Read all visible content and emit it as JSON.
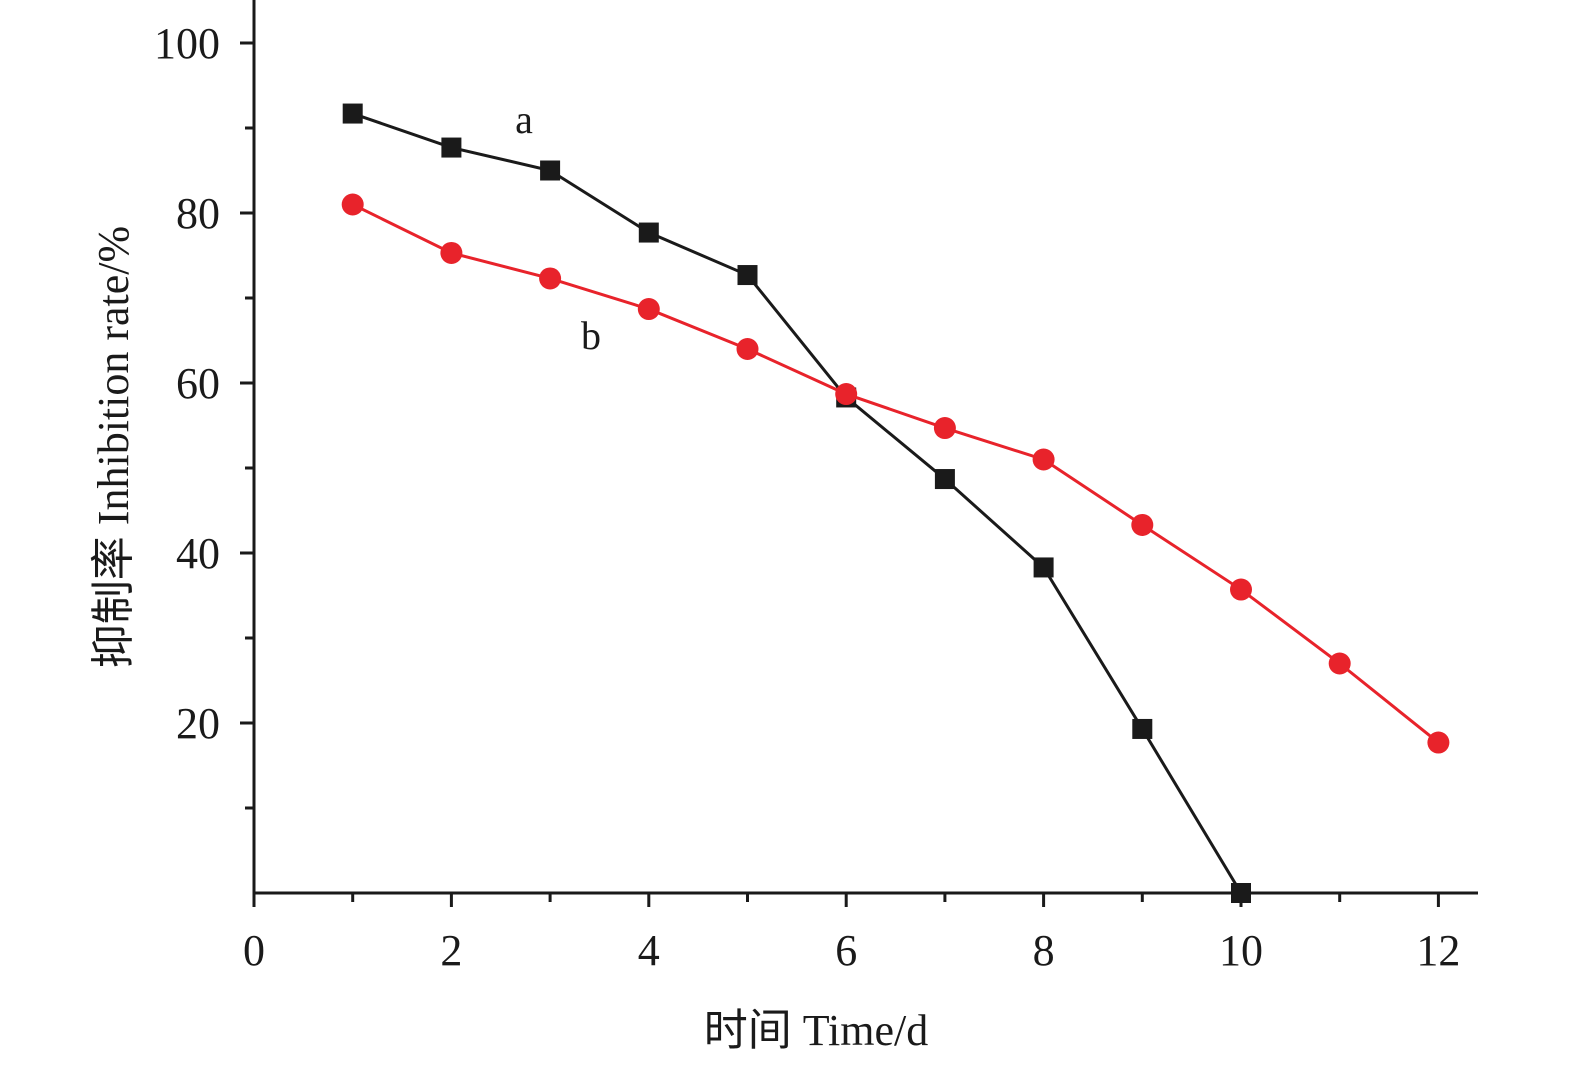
{
  "chart_data": {
    "type": "line",
    "xlabel": "时间 Time/d",
    "ylabel": "抑制率 Inhibition rate/%",
    "xlim": [
      0,
      12.4
    ],
    "ylim": [
      0,
      105
    ],
    "x_ticks": [
      0,
      2,
      4,
      6,
      8,
      10,
      12
    ],
    "x_minor_ticks": [
      1,
      3,
      5,
      7,
      9,
      11
    ],
    "y_ticks": [
      20,
      40,
      60,
      80,
      100
    ],
    "y_minor_ticks": [
      10,
      30,
      50,
      70,
      90
    ],
    "grid": false,
    "series": [
      {
        "name": "a",
        "color": "#1a1a1a",
        "marker": "square",
        "x": [
          1,
          2,
          3,
          4,
          5,
          6,
          7,
          8,
          9,
          10
        ],
        "y": [
          91.7,
          87.7,
          85.0,
          77.7,
          72.7,
          58.3,
          48.7,
          38.3,
          19.3,
          0
        ]
      },
      {
        "name": "b",
        "color": "#e8232b",
        "marker": "circle",
        "x": [
          1,
          2,
          3,
          4,
          5,
          6,
          7,
          8,
          9,
          10,
          11,
          12
        ],
        "y": [
          81.0,
          75.3,
          72.3,
          68.7,
          64.0,
          58.7,
          54.7,
          51.0,
          43.3,
          35.7,
          27.0,
          17.7
        ]
      }
    ]
  }
}
